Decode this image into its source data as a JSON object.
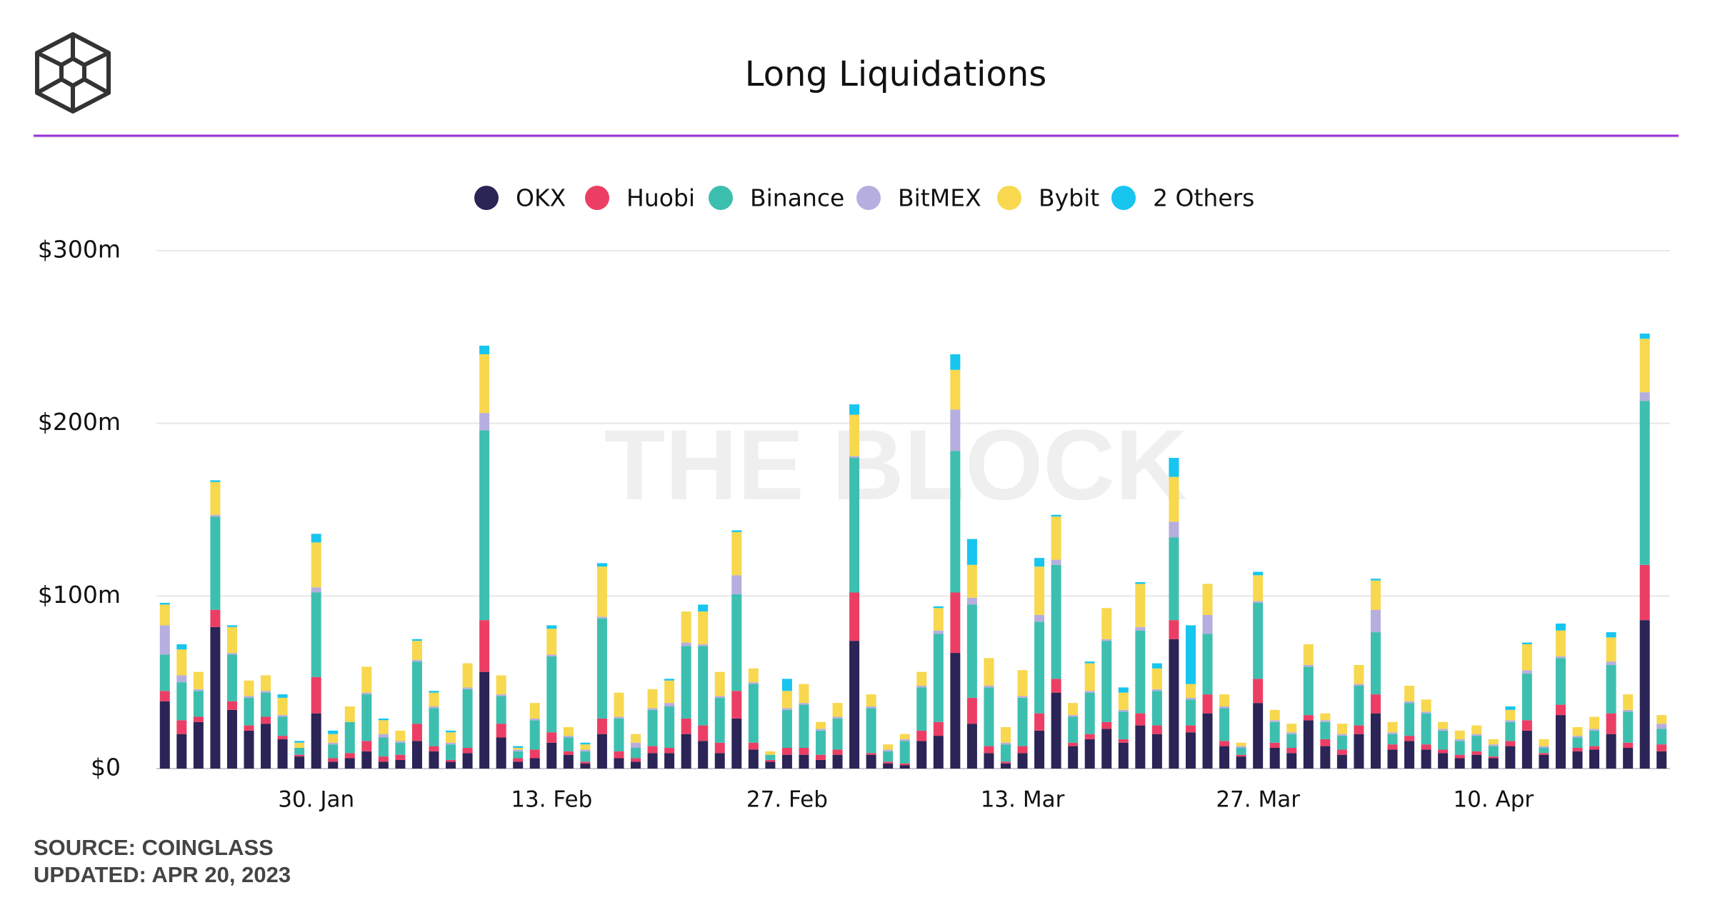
{
  "chart_data": {
    "type": "stacked_bar",
    "title": "Long Liquidations",
    "watermark": "THE BLOCK",
    "source": "SOURCE: COINGLASS",
    "updated": "UPDATED: APR 20, 2023",
    "categories": [
      null,
      null,
      null,
      null,
      null,
      null,
      null,
      null,
      null,
      "30. Jan",
      null,
      null,
      null,
      null,
      null,
      null,
      null,
      null,
      null,
      null,
      null,
      null,
      null,
      "13. Feb",
      null,
      null,
      null,
      null,
      null,
      null,
      null,
      null,
      null,
      null,
      null,
      null,
      null,
      "27. Feb",
      null,
      null,
      null,
      null,
      null,
      null,
      null,
      null,
      null,
      null,
      null,
      null,
      null,
      "13. Mar",
      null,
      null,
      null,
      null,
      null,
      null,
      null,
      null,
      null,
      null,
      null,
      null,
      null,
      "27. Mar",
      null,
      null,
      null,
      null,
      null,
      null,
      null,
      null,
      null,
      null,
      null,
      null,
      null,
      "10. Apr",
      null,
      null,
      null,
      null,
      null,
      null,
      null,
      null,
      null,
      null
    ],
    "ylim": [
      0,
      300
    ],
    "yticks": [
      {
        "value": 0,
        "label": "$0"
      },
      {
        "value": 100,
        "label": "$100m"
      },
      {
        "value": 200,
        "label": "$200m"
      },
      {
        "value": 300,
        "label": "$300m"
      }
    ],
    "grid": true,
    "legend": "top",
    "series": [
      {
        "name": "OKX",
        "color": "#2b2456",
        "values": [
          39,
          20,
          27,
          82,
          34,
          22,
          26,
          17,
          7,
          32,
          4,
          6,
          10,
          4,
          5,
          16,
          10,
          4,
          9,
          56,
          18,
          4,
          6,
          15,
          8,
          3,
          20,
          6,
          4,
          9,
          9,
          20,
          16,
          9,
          29,
          11,
          4,
          8,
          8,
          5,
          8,
          74,
          8,
          3,
          2,
          16,
          19,
          67,
          26,
          9,
          3,
          9,
          22,
          44,
          13,
          17,
          23,
          15,
          25,
          20,
          75,
          21,
          32,
          13,
          7,
          38,
          12,
          9,
          28,
          13,
          8,
          20,
          32,
          11,
          16,
          11,
          9,
          6,
          8,
          6,
          13,
          22,
          8,
          31,
          10,
          11,
          20,
          12,
          86,
          10
        ]
      },
      {
        "name": "Huobi",
        "color": "#ec3e65",
        "values": [
          6,
          8,
          3,
          10,
          5,
          3,
          4,
          2,
          1,
          21,
          2,
          3,
          6,
          3,
          3,
          10,
          3,
          1,
          3,
          30,
          8,
          2,
          5,
          6,
          2,
          1,
          9,
          4,
          2,
          4,
          3,
          9,
          9,
          6,
          16,
          4,
          1,
          4,
          4,
          3,
          3,
          28,
          1,
          1,
          1,
          6,
          8,
          35,
          15,
          4,
          1,
          4,
          10,
          8,
          2,
          3,
          4,
          2,
          7,
          5,
          11,
          4,
          11,
          3,
          1,
          14,
          3,
          3,
          3,
          4,
          3,
          5,
          11,
          3,
          3,
          3,
          2,
          2,
          2,
          1,
          3,
          6,
          1,
          6,
          2,
          2,
          12,
          3,
          32,
          4
        ]
      },
      {
        "name": "Binance",
        "color": "#3dbfb0",
        "values": [
          21,
          22,
          15,
          54,
          27,
          16,
          14,
          11,
          4,
          49,
          8,
          18,
          27,
          11,
          7,
          36,
          22,
          9,
          34,
          110,
          16,
          4,
          17,
          44,
          8,
          6,
          58,
          19,
          6,
          21,
          24,
          42,
          46,
          26,
          56,
          34,
          3,
          22,
          25,
          14,
          18,
          78,
          26,
          6,
          13,
          25,
          51,
          82,
          54,
          34,
          10,
          28,
          53,
          66,
          15,
          24,
          47,
          16,
          48,
          20,
          48,
          15,
          35,
          19,
          4,
          44,
          12,
          8,
          28,
          10,
          8,
          23,
          36,
          6,
          19,
          18,
          11,
          8,
          9,
          6,
          11,
          27,
          3,
          27,
          6,
          9,
          28,
          18,
          95,
          9
        ]
      },
      {
        "name": "BitMEX",
        "color": "#b6aedf",
        "values": [
          17,
          4,
          1,
          1,
          1,
          1,
          1,
          1,
          0,
          3,
          1,
          0,
          1,
          2,
          1,
          1,
          1,
          1,
          1,
          10,
          1,
          1,
          1,
          1,
          1,
          1,
          1,
          1,
          3,
          1,
          2,
          2,
          1,
          1,
          11,
          1,
          0,
          1,
          1,
          1,
          1,
          1,
          1,
          1,
          1,
          1,
          2,
          24,
          4,
          1,
          1,
          1,
          4,
          3,
          1,
          1,
          1,
          1,
          2,
          1,
          9,
          1,
          11,
          1,
          1,
          1,
          1,
          1,
          1,
          1,
          1,
          1,
          13,
          1,
          1,
          1,
          1,
          1,
          1,
          1,
          1,
          2,
          1,
          1,
          1,
          1,
          2,
          1,
          5,
          3
        ]
      },
      {
        "name": "Bybit",
        "color": "#f8d84e",
        "values": [
          12,
          15,
          10,
          19,
          15,
          9,
          9,
          10,
          3,
          26,
          5,
          9,
          15,
          8,
          6,
          11,
          8,
          6,
          14,
          34,
          11,
          1,
          9,
          15,
          5,
          3,
          29,
          14,
          5,
          11,
          13,
          18,
          19,
          14,
          25,
          8,
          2,
          10,
          11,
          4,
          8,
          24,
          7,
          3,
          3,
          8,
          13,
          23,
          19,
          16,
          9,
          15,
          28,
          25,
          7,
          16,
          18,
          10,
          25,
          12,
          26,
          8,
          18,
          7,
          2,
          15,
          6,
          5,
          12,
          4,
          6,
          11,
          17,
          6,
          9,
          7,
          4,
          5,
          5,
          3,
          6,
          15,
          4,
          15,
          5,
          7,
          14,
          9,
          31,
          5
        ]
      },
      {
        "name": "2 Others",
        "color": "#17c5ef",
        "values": [
          1,
          3,
          0,
          1,
          1,
          0,
          0,
          2,
          1,
          5,
          2,
          0,
          0,
          1,
          0,
          1,
          1,
          1,
          0,
          5,
          0,
          1,
          0,
          2,
          0,
          1,
          2,
          0,
          0,
          0,
          1,
          0,
          4,
          0,
          1,
          0,
          0,
          7,
          0,
          0,
          0,
          6,
          0,
          0,
          0,
          0,
          1,
          9,
          15,
          0,
          0,
          0,
          5,
          1,
          0,
          1,
          0,
          3,
          1,
          3,
          11,
          34,
          0,
          0,
          0,
          2,
          0,
          0,
          0,
          0,
          0,
          0,
          1,
          0,
          0,
          0,
          0,
          0,
          0,
          0,
          2,
          1,
          0,
          4,
          0,
          0,
          3,
          0,
          3,
          0
        ]
      }
    ]
  }
}
